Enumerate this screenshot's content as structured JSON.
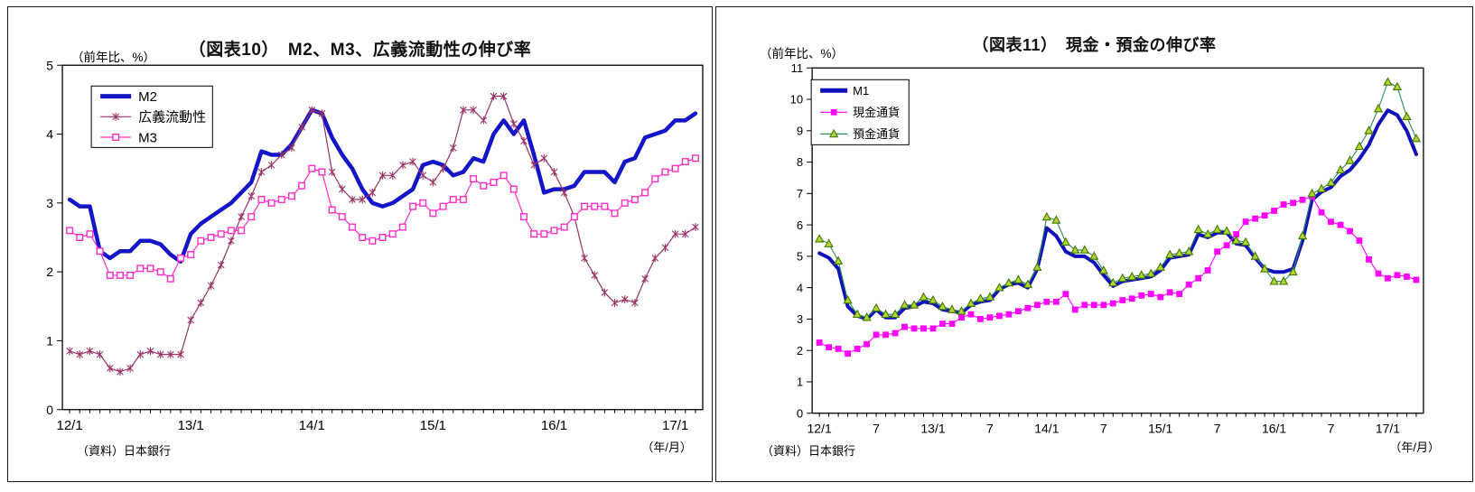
{
  "chart_data": [
    {
      "id": "fig10-m2-m3-broad-liquidity",
      "type": "line",
      "title": "（図表10）　M2、M3、広義流動性の伸び率",
      "y_axis_note": "（前年比、%）",
      "x_axis_note": "（年/月）",
      "source": "（資料）日本銀行",
      "x_start": "2012/1",
      "x_frequency": "monthly",
      "ylim": [
        0,
        5
      ],
      "ytick_step": 1,
      "grid": false,
      "legend_position": "top-left",
      "x_tick_labels": [
        {
          "index": 0,
          "label": "12/1"
        },
        {
          "index": 12,
          "label": "13/1"
        },
        {
          "index": 24,
          "label": "14/1"
        },
        {
          "index": 36,
          "label": "15/1"
        },
        {
          "index": 48,
          "label": "16/1"
        },
        {
          "index": 60,
          "label": "17/1"
        }
      ],
      "series": [
        {
          "name": "M2",
          "color": "#1414c8",
          "line_width": 4.5,
          "marker": "none",
          "values": [
            3.05,
            2.95,
            2.95,
            2.3,
            2.2,
            2.3,
            2.3,
            2.45,
            2.45,
            2.4,
            2.25,
            2.15,
            2.55,
            2.7,
            2.8,
            2.9,
            3.0,
            3.15,
            3.3,
            3.75,
            3.7,
            3.7,
            3.85,
            4.1,
            4.35,
            4.3,
            3.95,
            3.7,
            3.5,
            3.2,
            3.0,
            2.95,
            3.0,
            3.1,
            3.2,
            3.55,
            3.6,
            3.55,
            3.4,
            3.45,
            3.65,
            3.6,
            4.0,
            4.2,
            4.0,
            4.2,
            3.7,
            3.15,
            3.2,
            3.2,
            3.25,
            3.45,
            3.45,
            3.45,
            3.3,
            3.6,
            3.65,
            3.95,
            4.0,
            4.05,
            4.2,
            4.2,
            4.3
          ]
        },
        {
          "name": "広義流動性",
          "color": "#993366",
          "line_width": 1.2,
          "marker": "star",
          "values": [
            0.85,
            0.8,
            0.85,
            0.8,
            0.6,
            0.55,
            0.6,
            0.8,
            0.85,
            0.8,
            0.8,
            0.8,
            1.3,
            1.55,
            1.8,
            2.1,
            2.45,
            2.8,
            3.1,
            3.45,
            3.55,
            3.7,
            3.8,
            4.1,
            4.35,
            4.3,
            3.45,
            3.2,
            3.05,
            3.05,
            3.15,
            3.4,
            3.4,
            3.55,
            3.6,
            3.4,
            3.3,
            3.5,
            3.8,
            4.35,
            4.35,
            4.2,
            4.55,
            4.55,
            4.15,
            3.9,
            3.55,
            3.65,
            3.45,
            3.15,
            2.8,
            2.2,
            1.95,
            1.7,
            1.55,
            1.6,
            1.55,
            1.9,
            2.2,
            2.35,
            2.55,
            2.55,
            2.65
          ]
        },
        {
          "name": "M3",
          "color": "#ff2ec8",
          "line_width": 1.2,
          "marker": "open-square",
          "values": [
            2.6,
            2.5,
            2.55,
            2.3,
            1.95,
            1.95,
            1.95,
            2.05,
            2.05,
            2.0,
            1.9,
            2.2,
            2.25,
            2.45,
            2.5,
            2.55,
            2.6,
            2.6,
            2.8,
            3.05,
            3.0,
            3.05,
            3.1,
            3.25,
            3.5,
            3.45,
            2.9,
            2.8,
            2.65,
            2.5,
            2.45,
            2.5,
            2.55,
            2.65,
            2.95,
            3.0,
            2.85,
            2.95,
            3.05,
            3.05,
            3.35,
            3.25,
            3.3,
            3.4,
            3.2,
            2.8,
            2.55,
            2.55,
            2.6,
            2.65,
            2.8,
            2.95,
            2.95,
            2.95,
            2.85,
            3.0,
            3.05,
            3.15,
            3.35,
            3.45,
            3.5,
            3.6,
            3.65
          ]
        }
      ]
    },
    {
      "id": "fig11-cash-deposits",
      "type": "line",
      "title": "（図表11）　現金・預金の伸び率",
      "y_axis_note": "（前年比、%）",
      "x_axis_note": "（年/月）",
      "source": "（資料）日本銀行",
      "x_start": "2012/1",
      "x_frequency": "monthly",
      "ylim": [
        0,
        11
      ],
      "ytick_step": 1,
      "grid": false,
      "legend_position": "top-left",
      "x_tick_labels": [
        {
          "index": 0,
          "label": "12/1"
        },
        {
          "index": 6,
          "label": "7"
        },
        {
          "index": 12,
          "label": "13/1"
        },
        {
          "index": 18,
          "label": "7"
        },
        {
          "index": 24,
          "label": "14/1"
        },
        {
          "index": 30,
          "label": "7"
        },
        {
          "index": 36,
          "label": "15/1"
        },
        {
          "index": 42,
          "label": "7"
        },
        {
          "index": 48,
          "label": "16/1"
        },
        {
          "index": 54,
          "label": "7"
        },
        {
          "index": 60,
          "label": "17/1"
        }
      ],
      "series": [
        {
          "name": "M1",
          "color": "#1111bb",
          "line_width": 4,
          "marker": "none",
          "values": [
            5.1,
            4.95,
            4.6,
            3.4,
            3.1,
            3.0,
            3.3,
            3.05,
            3.05,
            3.35,
            3.4,
            3.55,
            3.5,
            3.3,
            3.25,
            3.2,
            3.45,
            3.55,
            3.6,
            3.95,
            4.1,
            4.15,
            4.0,
            4.6,
            5.9,
            5.65,
            5.15,
            5.0,
            5.0,
            4.8,
            4.4,
            4.05,
            4.2,
            4.25,
            4.3,
            4.35,
            4.55,
            4.95,
            5.0,
            5.05,
            5.7,
            5.6,
            5.75,
            5.75,
            5.4,
            5.35,
            4.95,
            4.6,
            4.5,
            4.5,
            4.6,
            5.5,
            6.8,
            7.05,
            7.2,
            7.55,
            7.75,
            8.1,
            8.55,
            9.2,
            9.65,
            9.5,
            9.0,
            8.25
          ]
        },
        {
          "name": "現金通貨",
          "color": "#ff00ff",
          "line_width": 1.1,
          "marker": "filled-square",
          "values": [
            2.25,
            2.1,
            2.05,
            1.9,
            2.05,
            2.2,
            2.5,
            2.5,
            2.55,
            2.75,
            2.7,
            2.7,
            2.7,
            2.85,
            2.85,
            3.05,
            3.15,
            3.0,
            3.05,
            3.1,
            3.15,
            3.25,
            3.35,
            3.45,
            3.55,
            3.55,
            3.8,
            3.3,
            3.45,
            3.45,
            3.45,
            3.5,
            3.6,
            3.65,
            3.75,
            3.8,
            3.7,
            3.85,
            3.8,
            4.1,
            4.3,
            4.55,
            5.15,
            5.35,
            5.7,
            6.1,
            6.2,
            6.3,
            6.45,
            6.65,
            6.7,
            6.8,
            6.9,
            6.4,
            6.1,
            6.0,
            5.8,
            5.5,
            4.9,
            4.45,
            4.3,
            4.4,
            4.35,
            4.25
          ]
        },
        {
          "name": "預金通貨",
          "color": "#2e8b57",
          "line_width": 1.1,
          "marker": "triangle",
          "marker_fill": "#b5d334",
          "marker_stroke": "#3f7a00",
          "values": [
            5.55,
            5.4,
            4.85,
            3.6,
            3.15,
            3.05,
            3.35,
            3.15,
            3.15,
            3.45,
            3.45,
            3.7,
            3.6,
            3.4,
            3.3,
            3.25,
            3.5,
            3.65,
            3.7,
            4.0,
            4.15,
            4.25,
            4.1,
            4.65,
            6.25,
            6.15,
            5.45,
            5.2,
            5.2,
            5.0,
            4.55,
            4.15,
            4.3,
            4.35,
            4.4,
            4.45,
            4.65,
            5.05,
            5.1,
            5.15,
            5.85,
            5.7,
            5.85,
            5.8,
            5.5,
            5.45,
            5.0,
            4.6,
            4.2,
            4.2,
            4.5,
            5.65,
            7.0,
            7.15,
            7.35,
            7.75,
            8.05,
            8.5,
            9.0,
            9.7,
            10.55,
            10.4,
            9.45,
            8.75
          ]
        }
      ]
    }
  ]
}
